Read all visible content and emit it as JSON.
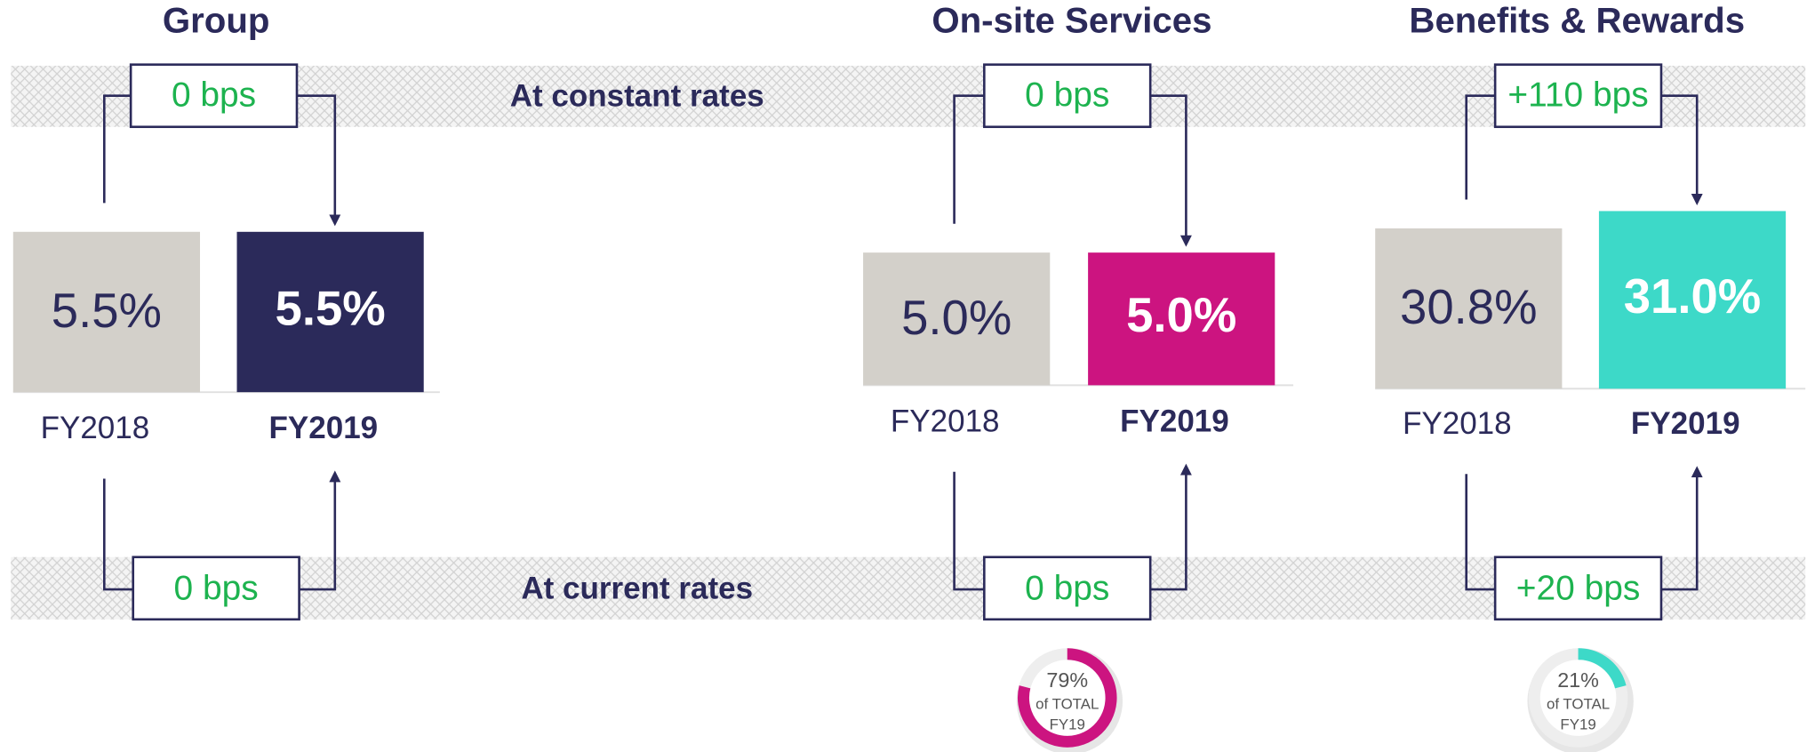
{
  "row_labels": {
    "constant": "At constant rates",
    "current": "At current rates"
  },
  "panels": [
    {
      "title": "Group",
      "color": "#2b2a5a",
      "prior": {
        "label": "FY2018",
        "value_text": "5.5%"
      },
      "current": {
        "label": "FY2019",
        "value_text": "5.5%"
      },
      "constant_change": "0 bps",
      "current_change": "0 bps"
    },
    {
      "title": "On-site Services",
      "color": "#cc1480",
      "prior": {
        "label": "FY2018",
        "value_text": "5.0%"
      },
      "current": {
        "label": "FY2019",
        "value_text": "5.0%"
      },
      "constant_change": "0 bps",
      "current_change": "0 bps",
      "share": {
        "value": 79,
        "label": "79%",
        "caption_1": "of TOTAL",
        "caption_2": "FY19"
      }
    },
    {
      "title": "Benefits & Rewards",
      "color": "#3dd9c8",
      "prior": {
        "label": "FY2018",
        "value_text": "30.8%"
      },
      "current": {
        "label": "FY2019",
        "value_text": "31.0%"
      },
      "constant_change": "+110 bps",
      "current_change": "+20 bps",
      "share": {
        "value": 21,
        "label": "21%",
        "caption_1": "of TOTAL",
        "caption_2": "FY19"
      }
    }
  ]
}
